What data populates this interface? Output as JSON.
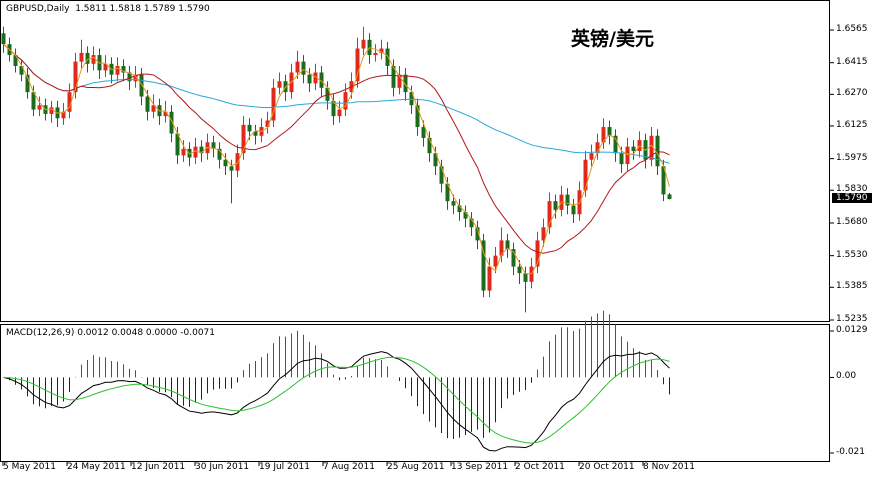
{
  "header": {
    "symbol": "GBPUSD,Daily",
    "ohlc": "1.5811 1.5818 1.5789 1.5790",
    "annotation": "英镑/美元"
  },
  "macd_header": "MACD(12,26,9) 0.0012 0.0048 0.0000 -0.0071",
  "colors": {
    "up": "#e0281c",
    "down": "#1c6b1c",
    "ma_fast": "#e39a1a",
    "ma_mid": "#b01818",
    "ma_slow": "#2aa8d8",
    "macd": "#000000",
    "signal": "#2ec02e",
    "hist_pos": "#b02828",
    "hist_neg": "#1a1a70"
  },
  "chart_data": {
    "type": "candlestick",
    "price_ticks": [
      "1.6565",
      "1.6415",
      "1.6270",
      "1.6125",
      "1.5975",
      "1.5830",
      "1.5680",
      "1.5530",
      "1.5385",
      "1.5235"
    ],
    "last_price": "1.5790",
    "macd_ticks": [
      "0.0129",
      "0.00",
      "-0.021"
    ],
    "x_ticks": [
      "5 May 2011",
      "24 May 2011",
      "12 Jun 2011",
      "30 Jun 2011",
      "19 Jul 2011",
      "7 Aug 2011",
      "25 Aug 2011",
      "13 Sep 2011",
      "2 Oct 2011",
      "20 Oct 2011",
      "8 Nov 2011"
    ],
    "ylim": [
      1.5235,
      1.6565
    ],
    "macd_ylim": [
      -0.021,
      0.0129
    ],
    "candles": [
      [
        1.655,
        1.658,
        1.646,
        1.65
      ],
      [
        1.65,
        1.653,
        1.642,
        1.645
      ],
      [
        1.645,
        1.648,
        1.637,
        1.64
      ],
      [
        1.64,
        1.643,
        1.633,
        1.636
      ],
      [
        1.636,
        1.639,
        1.625,
        1.628
      ],
      [
        1.628,
        1.631,
        1.617,
        1.62
      ],
      [
        1.62,
        1.626,
        1.617,
        1.622
      ],
      [
        1.622,
        1.625,
        1.615,
        1.618
      ],
      [
        1.618,
        1.624,
        1.614,
        1.621
      ],
      [
        1.621,
        1.624,
        1.612,
        1.616
      ],
      [
        1.616,
        1.623,
        1.613,
        1.619
      ],
      [
        1.619,
        1.632,
        1.616,
        1.628
      ],
      [
        1.628,
        1.646,
        1.625,
        1.642
      ],
      [
        1.642,
        1.652,
        1.639,
        1.646
      ],
      [
        1.646,
        1.649,
        1.637,
        1.641
      ],
      [
        1.641,
        1.649,
        1.638,
        1.645
      ],
      [
        1.645,
        1.648,
        1.634,
        1.638
      ],
      [
        1.638,
        1.645,
        1.635,
        1.641
      ],
      [
        1.641,
        1.644,
        1.632,
        1.636
      ],
      [
        1.636,
        1.644,
        1.633,
        1.64
      ],
      [
        1.64,
        1.643,
        1.633,
        1.637
      ],
      [
        1.637,
        1.64,
        1.629,
        1.633
      ],
      [
        1.633,
        1.64,
        1.63,
        1.636
      ],
      [
        1.636,
        1.639,
        1.622,
        1.626
      ],
      [
        1.626,
        1.629,
        1.615,
        1.619
      ],
      [
        1.619,
        1.627,
        1.616,
        1.622
      ],
      [
        1.622,
        1.625,
        1.613,
        1.617
      ],
      [
        1.617,
        1.624,
        1.614,
        1.619
      ],
      [
        1.619,
        1.622,
        1.605,
        1.609
      ],
      [
        1.609,
        1.612,
        1.595,
        1.599
      ],
      [
        1.599,
        1.606,
        1.596,
        1.602
      ],
      [
        1.602,
        1.605,
        1.594,
        1.598
      ],
      [
        1.598,
        1.607,
        1.595,
        1.603
      ],
      [
        1.603,
        1.606,
        1.596,
        1.6
      ],
      [
        1.6,
        1.609,
        1.597,
        1.605
      ],
      [
        1.605,
        1.608,
        1.598,
        1.602
      ],
      [
        1.602,
        1.605,
        1.593,
        1.597
      ],
      [
        1.597,
        1.6,
        1.59,
        1.594
      ],
      [
        1.594,
        1.597,
        1.577,
        1.592
      ],
      [
        1.592,
        1.604,
        1.589,
        1.6
      ],
      [
        1.6,
        1.617,
        1.597,
        1.613
      ],
      [
        1.613,
        1.616,
        1.606,
        1.61
      ],
      [
        1.61,
        1.613,
        1.604,
        1.608
      ],
      [
        1.608,
        1.616,
        1.605,
        1.612
      ],
      [
        1.612,
        1.619,
        1.609,
        1.615
      ],
      [
        1.615,
        1.634,
        1.612,
        1.63
      ],
      [
        1.63,
        1.637,
        1.627,
        1.633
      ],
      [
        1.633,
        1.636,
        1.624,
        1.628
      ],
      [
        1.628,
        1.641,
        1.625,
        1.637
      ],
      [
        1.637,
        1.647,
        1.634,
        1.642
      ],
      [
        1.642,
        1.645,
        1.632,
        1.636
      ],
      [
        1.636,
        1.639,
        1.628,
        1.632
      ],
      [
        1.632,
        1.641,
        1.629,
        1.637
      ],
      [
        1.637,
        1.64,
        1.626,
        1.63
      ],
      [
        1.63,
        1.633,
        1.62,
        1.624
      ],
      [
        1.624,
        1.627,
        1.613,
        1.617
      ],
      [
        1.617,
        1.624,
        1.614,
        1.62
      ],
      [
        1.62,
        1.632,
        1.617,
        1.628
      ],
      [
        1.628,
        1.637,
        1.625,
        1.633
      ],
      [
        1.633,
        1.653,
        1.63,
        1.648
      ],
      [
        1.648,
        1.658,
        1.645,
        1.652
      ],
      [
        1.652,
        1.655,
        1.641,
        1.645
      ],
      [
        1.645,
        1.65,
        1.642,
        1.646
      ],
      [
        1.646,
        1.652,
        1.643,
        1.648
      ],
      [
        1.648,
        1.651,
        1.636,
        1.64
      ],
      [
        1.64,
        1.643,
        1.626,
        1.63
      ],
      [
        1.63,
        1.64,
        1.627,
        1.636
      ],
      [
        1.636,
        1.639,
        1.624,
        1.628
      ],
      [
        1.628,
        1.631,
        1.618,
        1.622
      ],
      [
        1.622,
        1.625,
        1.608,
        1.612
      ],
      [
        1.612,
        1.615,
        1.603,
        1.607
      ],
      [
        1.607,
        1.61,
        1.596,
        1.6
      ],
      [
        1.6,
        1.603,
        1.59,
        1.594
      ],
      [
        1.594,
        1.597,
        1.582,
        1.586
      ],
      [
        1.586,
        1.589,
        1.574,
        1.578
      ],
      [
        1.578,
        1.581,
        1.572,
        1.576
      ],
      [
        1.576,
        1.579,
        1.569,
        1.573
      ],
      [
        1.573,
        1.576,
        1.566,
        1.57
      ],
      [
        1.57,
        1.573,
        1.562,
        1.566
      ],
      [
        1.566,
        1.569,
        1.556,
        1.56
      ],
      [
        1.56,
        1.563,
        1.534,
        1.537
      ],
      [
        1.537,
        1.552,
        1.534,
        1.548
      ],
      [
        1.548,
        1.557,
        1.545,
        1.553
      ],
      [
        1.553,
        1.566,
        1.55,
        1.56
      ],
      [
        1.56,
        1.563,
        1.552,
        1.556
      ],
      [
        1.556,
        1.559,
        1.544,
        1.548
      ],
      [
        1.548,
        1.551,
        1.54,
        1.545
      ],
      [
        1.545,
        1.548,
        1.527,
        1.541
      ],
      [
        1.541,
        1.552,
        1.538,
        1.548
      ],
      [
        1.548,
        1.564,
        1.545,
        1.56
      ],
      [
        1.56,
        1.57,
        1.557,
        1.566
      ],
      [
        1.566,
        1.582,
        1.563,
        1.578
      ],
      [
        1.578,
        1.581,
        1.57,
        1.574
      ],
      [
        1.574,
        1.585,
        1.571,
        1.581
      ],
      [
        1.581,
        1.584,
        1.572,
        1.576
      ],
      [
        1.576,
        1.579,
        1.568,
        1.572
      ],
      [
        1.572,
        1.587,
        1.569,
        1.583
      ],
      [
        1.583,
        1.601,
        1.58,
        1.597
      ],
      [
        1.597,
        1.604,
        1.594,
        1.6
      ],
      [
        1.6,
        1.609,
        1.597,
        1.605
      ],
      [
        1.605,
        1.616,
        1.602,
        1.612
      ],
      [
        1.612,
        1.615,
        1.604,
        1.608
      ],
      [
        1.608,
        1.611,
        1.596,
        1.6
      ],
      [
        1.6,
        1.603,
        1.591,
        1.595
      ],
      [
        1.595,
        1.607,
        1.592,
        1.603
      ],
      [
        1.603,
        1.606,
        1.597,
        1.601
      ],
      [
        1.601,
        1.61,
        1.598,
        1.606
      ],
      [
        1.606,
        1.609,
        1.593,
        1.597
      ],
      [
        1.597,
        1.612,
        1.594,
        1.608
      ],
      [
        1.608,
        1.611,
        1.59,
        1.594
      ],
      [
        1.594,
        1.597,
        1.578,
        1.5811
      ],
      [
        1.5811,
        1.5818,
        1.5789,
        1.579
      ]
    ]
  }
}
